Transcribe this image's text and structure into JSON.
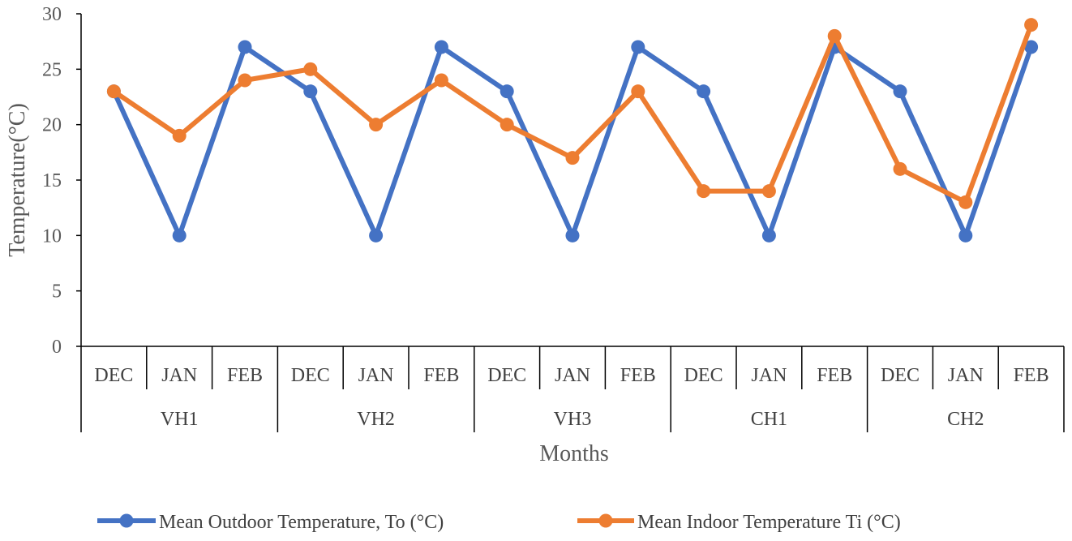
{
  "chart_data": {
    "type": "line",
    "title": "",
    "xlabel": "Months",
    "ylabel": "Temperature(°C)",
    "ylim": [
      0,
      30
    ],
    "yticks": [
      0,
      5,
      10,
      15,
      20,
      25,
      30
    ],
    "grid": false,
    "legend_position": "bottom",
    "groups": [
      {
        "name": "VH1",
        "months": [
          "DEC",
          "JAN",
          "FEB"
        ]
      },
      {
        "name": "VH2",
        "months": [
          "DEC",
          "JAN",
          "FEB"
        ]
      },
      {
        "name": "VH3",
        "months": [
          "DEC",
          "JAN",
          "FEB"
        ]
      },
      {
        "name": "CH1",
        "months": [
          "DEC",
          "JAN",
          "FEB"
        ]
      },
      {
        "name": "CH2",
        "months": [
          "DEC",
          "JAN",
          "FEB"
        ]
      }
    ],
    "series": [
      {
        "name": "Mean Outdoor Temperature, To (°C)",
        "color": "#4472C4",
        "values": [
          23,
          10,
          27,
          23,
          10,
          27,
          23,
          10,
          27,
          23,
          10,
          27,
          23,
          10,
          27
        ]
      },
      {
        "name": "Mean Indoor Temperature Ti (°C)",
        "color": "#ED7D31",
        "values": [
          23,
          19,
          24,
          25,
          20,
          24,
          20,
          17,
          23,
          14,
          14,
          28,
          16,
          13,
          29
        ]
      }
    ]
  }
}
